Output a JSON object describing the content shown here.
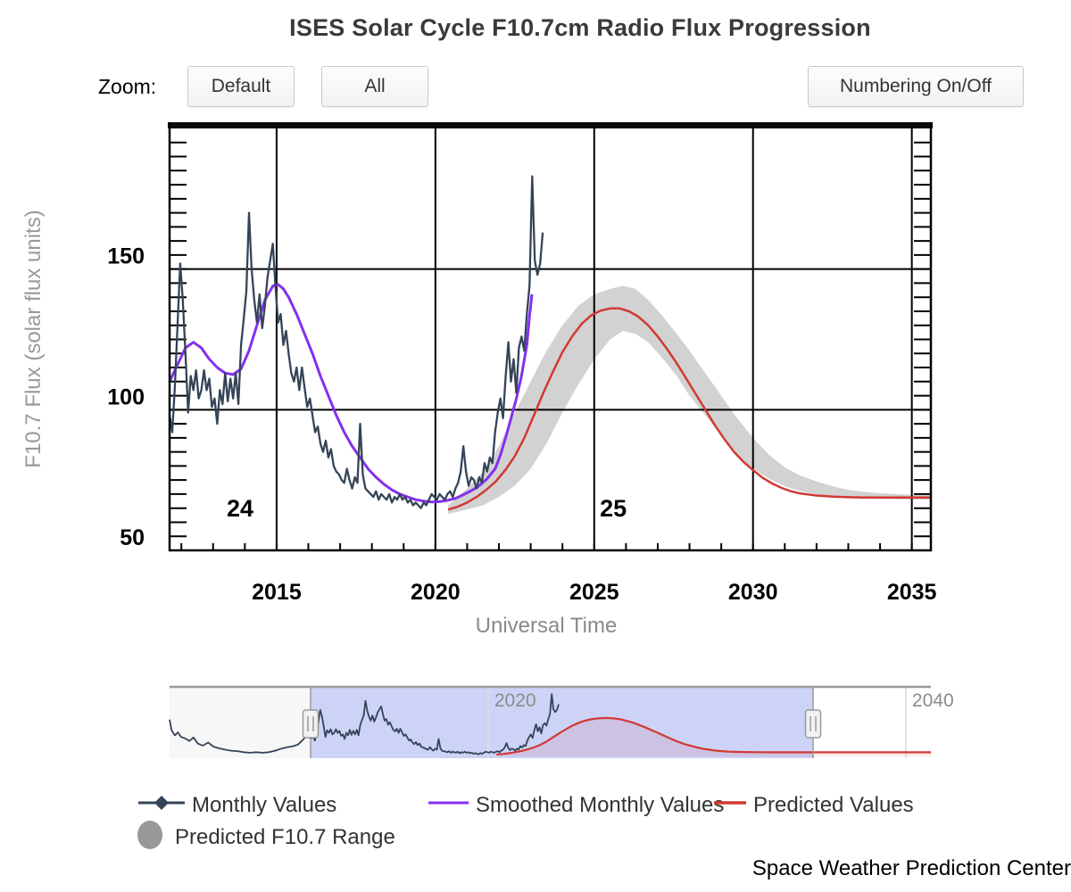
{
  "page": {
    "title": "ISES Solar Cycle F10.7cm Radio Flux Progression"
  },
  "toolbar": {
    "zoom_label": "Zoom:",
    "buttons": [
      "Default",
      "All"
    ],
    "numbering_button": "Numbering On/Off"
  },
  "credit": "Space Weather Prediction Center",
  "legend": {
    "range_marker_color": "#989898"
  },
  "chart_data": {
    "type": "line",
    "title": "ISES Solar Cycle F10.7cm Radio Flux Progression",
    "xlabel": "Universal Time",
    "ylabel": "F10.7 Flux (solar flux units)",
    "xlim": [
      2011.63,
      2035.6
    ],
    "ylim": [
      50,
      200
    ],
    "x_ticks": [
      2015,
      2020,
      2025,
      2030,
      2035
    ],
    "y_ticks": [
      50,
      100,
      150
    ],
    "minor_x_step": 1,
    "minor_y_step": 5,
    "grid": true,
    "legend_position": "bottom",
    "cycle_labels": [
      {
        "text": "24",
        "x": 2013.85,
        "y": 60
      },
      {
        "text": "25",
        "x": 2025.6,
        "y": 60
      }
    ],
    "series": [
      {
        "name": "Monthly Values",
        "color": "#344457",
        "type": "line",
        "marker": "diamond",
        "x_start": 2011.63,
        "x_step": 0.08333,
        "values": [
          98,
          92,
          108,
          130,
          152,
          139,
          120,
          99,
          112,
          107,
          114,
          104,
          107,
          114,
          107,
          111,
          101,
          104,
          95,
          107,
          102,
          113,
          103,
          111,
          104,
          113,
          102,
          123,
          132,
          142,
          170,
          150,
          139,
          131,
          141,
          129,
          137,
          147,
          153,
          159,
          144,
          131,
          134,
          123,
          128,
          120,
          113,
          110,
          115,
          107,
          115,
          108,
          101,
          104,
          98,
          92,
          94,
          88,
          85,
          89,
          83,
          86,
          80,
          78,
          77,
          75,
          74,
          79,
          75,
          72,
          76,
          74,
          95,
          77,
          72,
          71,
          70,
          69,
          71,
          68,
          70,
          69,
          68,
          70,
          67,
          69,
          68,
          70,
          68,
          69,
          67,
          68,
          66,
          67,
          66,
          65,
          67,
          66,
          68,
          70,
          69,
          68,
          70,
          69,
          68,
          70,
          71,
          69,
          72,
          74,
          78,
          87,
          78,
          73,
          76,
          75,
          72,
          76,
          74,
          81,
          78,
          83,
          81,
          92,
          99,
          104,
          97,
          112,
          124,
          110,
          118,
          106,
          122,
          126,
          121,
          134,
          144,
          183,
          153,
          148,
          152,
          163
        ]
      },
      {
        "name": "Smoothed Monthly Values",
        "color": "#8430ef",
        "type": "line",
        "marker": "line",
        "points": [
          [
            2011.63,
            110
          ],
          [
            2011.88,
            116
          ],
          [
            2012.13,
            122
          ],
          [
            2012.38,
            124
          ],
          [
            2012.63,
            122
          ],
          [
            2012.88,
            118
          ],
          [
            2013.13,
            115
          ],
          [
            2013.38,
            113
          ],
          [
            2013.63,
            112.5
          ],
          [
            2013.88,
            114.5
          ],
          [
            2014.13,
            121
          ],
          [
            2014.38,
            130
          ],
          [
            2014.63,
            139
          ],
          [
            2014.88,
            144
          ],
          [
            2015.05,
            144.5
          ],
          [
            2015.21,
            143
          ],
          [
            2015.38,
            140
          ],
          [
            2015.63,
            134
          ],
          [
            2015.88,
            127
          ],
          [
            2016.13,
            120
          ],
          [
            2016.38,
            112
          ],
          [
            2016.63,
            105
          ],
          [
            2016.88,
            98
          ],
          [
            2017.13,
            92
          ],
          [
            2017.38,
            87
          ],
          [
            2017.63,
            83
          ],
          [
            2017.88,
            79
          ],
          [
            2018.13,
            76
          ],
          [
            2018.38,
            73.5
          ],
          [
            2018.63,
            71.5
          ],
          [
            2018.88,
            70
          ],
          [
            2019.13,
            69
          ],
          [
            2019.38,
            68
          ],
          [
            2019.63,
            67.5
          ],
          [
            2019.88,
            67.2
          ],
          [
            2020.13,
            67.3
          ],
          [
            2020.38,
            67.8
          ],
          [
            2020.63,
            68.5
          ],
          [
            2020.88,
            69.8
          ],
          [
            2021.13,
            71.2
          ],
          [
            2021.38,
            73
          ],
          [
            2021.63,
            75.5
          ],
          [
            2021.88,
            79
          ],
          [
            2022.05,
            84
          ],
          [
            2022.21,
            90
          ],
          [
            2022.38,
            97
          ],
          [
            2022.55,
            104
          ],
          [
            2022.71,
            112
          ],
          [
            2022.88,
            123
          ],
          [
            2022.96,
            133
          ],
          [
            2023.04,
            141
          ]
        ]
      },
      {
        "name": "Predicted Values",
        "color": "#d23933",
        "type": "line",
        "marker": "line",
        "points": [
          [
            2020.4,
            64.5
          ],
          [
            2020.7,
            65.5
          ],
          [
            2021,
            67
          ],
          [
            2021.3,
            69
          ],
          [
            2021.6,
            71.5
          ],
          [
            2021.9,
            74.5
          ],
          [
            2022.2,
            78.5
          ],
          [
            2022.5,
            83.5
          ],
          [
            2022.8,
            90
          ],
          [
            2023.1,
            98
          ],
          [
            2023.4,
            106
          ],
          [
            2023.7,
            113.5
          ],
          [
            2024,
            120.5
          ],
          [
            2024.3,
            126
          ],
          [
            2024.6,
            130.5
          ],
          [
            2024.9,
            133.5
          ],
          [
            2025.2,
            135.2
          ],
          [
            2025.5,
            136
          ],
          [
            2025.8,
            136
          ],
          [
            2026.1,
            135
          ],
          [
            2026.4,
            133
          ],
          [
            2026.7,
            130
          ],
          [
            2027,
            126
          ],
          [
            2027.3,
            121.5
          ],
          [
            2027.6,
            116.5
          ],
          [
            2027.9,
            111
          ],
          [
            2028.2,
            105.5
          ],
          [
            2028.5,
            100
          ],
          [
            2028.8,
            94.5
          ],
          [
            2029.1,
            89.5
          ],
          [
            2029.4,
            85
          ],
          [
            2029.7,
            81.5
          ],
          [
            2030,
            78.5
          ],
          [
            2030.3,
            75.8
          ],
          [
            2030.6,
            73.8
          ],
          [
            2030.9,
            72.2
          ],
          [
            2031.2,
            71
          ],
          [
            2031.5,
            70.2
          ],
          [
            2032,
            69.5
          ],
          [
            2032.5,
            69.1
          ],
          [
            2033,
            68.9
          ],
          [
            2033.5,
            68.8
          ],
          [
            2034,
            68.8
          ],
          [
            2034.5,
            68.8
          ],
          [
            2035,
            68.8
          ],
          [
            2035.59,
            68.8
          ]
        ]
      },
      {
        "name": "Predicted F10.7 Range",
        "color": "#d2d2d2",
        "type": "arearange",
        "marker": "circle",
        "points": [
          [
            2020.4,
            63,
            66
          ],
          [
            2021,
            64.5,
            72
          ],
          [
            2021.5,
            66,
            78
          ],
          [
            2022,
            69,
            87
          ],
          [
            2022.5,
            73,
            99
          ],
          [
            2023,
            79,
            110
          ],
          [
            2023.5,
            88,
            121
          ],
          [
            2024,
            99,
            130
          ],
          [
            2024.5,
            109,
            137
          ],
          [
            2025,
            118,
            141
          ],
          [
            2025.5,
            125,
            143
          ],
          [
            2025.9,
            128,
            144
          ],
          [
            2026.3,
            127,
            143
          ],
          [
            2026.7,
            124,
            139
          ],
          [
            2027.1,
            119,
            134
          ],
          [
            2027.6,
            112,
            127
          ],
          [
            2028,
            105,
            121
          ],
          [
            2028.5,
            98,
            113
          ],
          [
            2029,
            91,
            105
          ],
          [
            2029.5,
            84,
            97
          ],
          [
            2030,
            79,
            90
          ],
          [
            2030.5,
            75.5,
            84
          ],
          [
            2031,
            72.8,
            79.5
          ],
          [
            2031.5,
            71,
            76.5
          ],
          [
            2032,
            70,
            74.5
          ],
          [
            2032.5,
            69.2,
            72.8
          ],
          [
            2033,
            68.8,
            71.5
          ],
          [
            2033.5,
            68.5,
            70.8
          ],
          [
            2034,
            68.3,
            70.3
          ],
          [
            2034.5,
            68.2,
            70
          ],
          [
            2035,
            68.1,
            69.8
          ],
          [
            2035.59,
            68,
            69.7
          ]
        ]
      }
    ],
    "navigator": {
      "xlim": [
        2004.75,
        2041.2
      ],
      "selection": [
        2011.5,
        2035.56
      ],
      "labels": [
        {
          "text": "2020",
          "x": 2020
        },
        {
          "text": "2040",
          "x": 2040
        }
      ],
      "mask_color": "#cdd3f6",
      "outside_left_color": "#f7f7f7",
      "pre_monthly": [
        [
          2004.75,
          133
        ],
        [
          2004.85,
          112
        ],
        [
          2005.0,
          102
        ],
        [
          2005.15,
          108
        ],
        [
          2005.3,
          99
        ],
        [
          2005.5,
          96
        ],
        [
          2005.7,
          91
        ],
        [
          2005.9,
          98
        ],
        [
          2006.1,
          86
        ],
        [
          2006.35,
          82
        ],
        [
          2006.6,
          88
        ],
        [
          2006.85,
          80
        ],
        [
          2007.1,
          77
        ],
        [
          2007.4,
          74
        ],
        [
          2007.7,
          72
        ],
        [
          2008.0,
          71
        ],
        [
          2008.3,
          69
        ],
        [
          2008.6,
          68
        ],
        [
          2008.9,
          69
        ],
        [
          2009.2,
          68
        ],
        [
          2009.5,
          69
        ],
        [
          2009.8,
          72
        ],
        [
          2010.1,
          76
        ],
        [
          2010.4,
          79
        ],
        [
          2010.7,
          81
        ],
        [
          2010.9,
          84
        ],
        [
          2011.1,
          92
        ],
        [
          2011.3,
          101
        ],
        [
          2011.5,
          96
        ]
      ],
      "predicted_extension": [
        [
          2036.5,
          68.8
        ],
        [
          2038,
          68.8
        ],
        [
          2040,
          68.8
        ],
        [
          2041.2,
          68.8
        ]
      ]
    }
  }
}
